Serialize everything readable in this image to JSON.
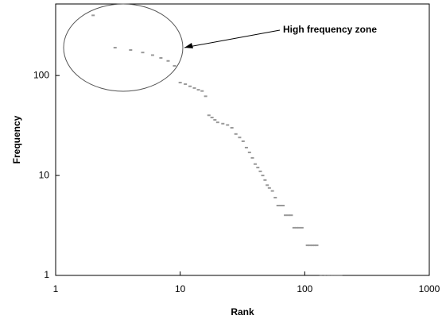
{
  "chart_data": {
    "type": "scatter",
    "log_x": true,
    "log_y": true,
    "x_label": "Rank",
    "y_label": "Frequency",
    "annotation": "High frequency zone",
    "color": "#999999",
    "xlim": [
      1,
      1000
    ],
    "ylim": [
      1,
      520
    ],
    "xticks": [
      1,
      10,
      100,
      1000
    ],
    "yticks": [
      1,
      10,
      100
    ],
    "x": [
      2,
      3,
      4,
      5,
      6,
      7,
      8,
      9,
      10,
      11,
      12,
      13,
      14,
      15,
      16,
      17,
      18,
      19,
      20,
      22,
      24,
      26,
      28,
      30,
      32,
      34,
      36,
      38,
      40,
      42,
      44,
      46,
      48,
      50,
      52,
      55,
      58,
      61,
      64,
      67,
      70,
      74,
      78,
      82,
      86,
      90,
      95,
      105,
      110,
      115,
      120,
      125,
      135,
      145,
      155,
      165,
      175,
      185,
      195
    ],
    "values": [
      400,
      190,
      180,
      170,
      160,
      150,
      140,
      125,
      85,
      82,
      78,
      75,
      72,
      70,
      62,
      40,
      38,
      36,
      34,
      33,
      32,
      30,
      26,
      24,
      22,
      19,
      17,
      15,
      13,
      12,
      11,
      10,
      9,
      8,
      7.5,
      7,
      6,
      5,
      5,
      5,
      4,
      4,
      4,
      3,
      3,
      3,
      3,
      2,
      2,
      2,
      2,
      2,
      1,
      1,
      1,
      1,
      1,
      1,
      1
    ]
  }
}
